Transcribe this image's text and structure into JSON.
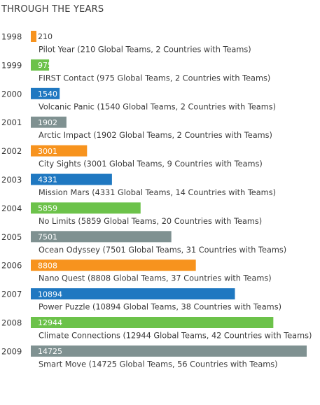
{
  "title": "THROUGH THE YEARS",
  "chart_data": {
    "type": "bar",
    "orientation": "horizontal",
    "title": "THROUGH THE YEARS",
    "xlabel": "",
    "ylabel": "",
    "xlim": [
      0,
      14725
    ],
    "grid": false,
    "legend": "none",
    "categories": [
      "1998",
      "1999",
      "2000",
      "2001",
      "2002",
      "2003",
      "2004",
      "2005",
      "2006",
      "2007",
      "2008",
      "2009"
    ],
    "values": [
      210,
      975,
      1540,
      1902,
      3001,
      4331,
      5859,
      7501,
      8808,
      10894,
      12944,
      14725
    ],
    "value_labels": [
      "210",
      "975",
      "1540",
      "1902",
      "3001",
      "4331",
      "5859",
      "7501",
      "8808",
      "10894",
      "12944",
      "14725"
    ],
    "annotations": [
      "Pilot Year (210 Global Teams, 2 Countries with Teams)",
      "FIRST Contact (975 Global Teams, 2 Countries with Teams)",
      "Volcanic Panic (1540 Global Teams, 2 Countries with Teams)",
      "Arctic Impact (1902 Global Teams, 2 Countries with Teams)",
      "City Sights (3001 Global Teams, 9 Countries with Teams)",
      "Mission Mars (4331 Global Teams, 14 Countries with Teams)",
      "No Limits (5859 Global Teams, 20 Countries with Teams)",
      "Ocean Odyssey (7501 Global Teams, 31 Countries with Teams)",
      "Nano Quest (8808 Global Teams, 37 Countries with Teams)",
      "Power Puzzle (10894 Global Teams, 38 Countries with Teams)",
      "Climate Connections (12944 Global Teams, 42 Countries with Teams)",
      "Smart Move (14725 Global Teams, 56 Countries with Teams)"
    ],
    "bar_colors": [
      "#f7931e",
      "#6cc24a",
      "#1f78c1",
      "#7f9191",
      "#f7931e",
      "#1f78c1",
      "#6cc24a",
      "#7f9191",
      "#f7931e",
      "#1f78c1",
      "#6cc24a",
      "#7f9191"
    ]
  }
}
